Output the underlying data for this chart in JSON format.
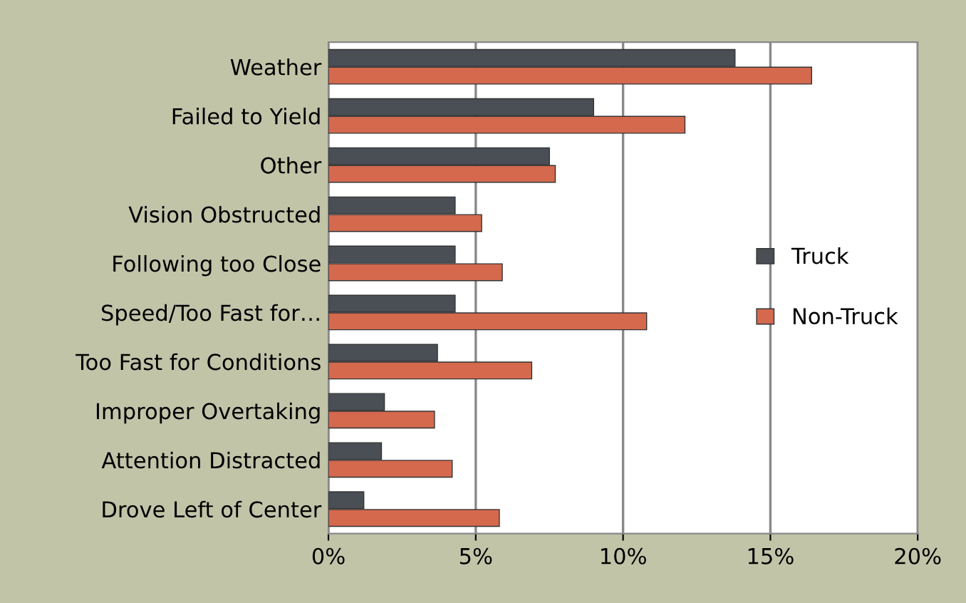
{
  "chart_data": {
    "type": "bar",
    "orientation": "horizontal",
    "categories": [
      "Weather",
      "Failed to Yield",
      "Other",
      "Vision Obstructed",
      "Following too Close",
      "Speed/Too Fast for…",
      "Too Fast for Conditions",
      "Improper Overtaking",
      "Attention Distracted",
      "Drove Left of Center"
    ],
    "series": [
      {
        "name": "Truck",
        "color": "#4a4f55",
        "values": [
          13.8,
          9.0,
          7.5,
          4.3,
          4.3,
          4.3,
          3.7,
          1.9,
          1.8,
          1.2
        ]
      },
      {
        "name": "Non-Truck",
        "color": "#d4694e",
        "values": [
          16.4,
          12.1,
          7.7,
          5.2,
          5.9,
          10.8,
          6.9,
          3.6,
          4.2,
          5.8
        ]
      }
    ],
    "xlim": [
      0,
      20
    ],
    "xticks": [
      {
        "value": 0,
        "label": "0%"
      },
      {
        "value": 5,
        "label": "5%"
      },
      {
        "value": 10,
        "label": "10%"
      },
      {
        "value": 15,
        "label": "15%"
      },
      {
        "value": 20,
        "label": "20%"
      }
    ],
    "grid": "x",
    "legend": "right"
  }
}
